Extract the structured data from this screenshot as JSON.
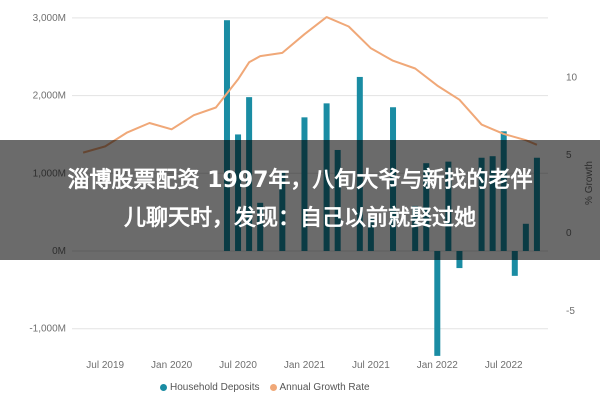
{
  "banner": {
    "line1": "淄博股票配资 1997年，八旬大爷与新找的老伴",
    "line2": "儿聊天时，发现：自己以前就娶过她"
  },
  "colors": {
    "deposits": "#1a8ca3",
    "growth": "#f0a878",
    "grid": "#e3e3e3"
  },
  "chart_data": {
    "type": "bar",
    "title": "",
    "x_tick_labels": [
      "Jul 2019",
      "Jan 2020",
      "Jul 2020",
      "Jan 2021",
      "Jul 2021",
      "Jan 2022",
      "Jul 2022"
    ],
    "y_left_tick_labels": [
      "3,000M",
      "2,000M",
      "1,000M",
      "0M",
      "-1,000M"
    ],
    "y_left_ticks": [
      3000,
      2000,
      1000,
      0,
      -1000
    ],
    "ylim_left": [
      -1300,
      3050
    ],
    "y_right_tick_labels": [
      "10",
      "5",
      "0",
      "-5"
    ],
    "y_right_ticks": [
      10,
      5,
      0,
      -5
    ],
    "ylim_right": [
      -7.7,
      14
    ],
    "y_right_label": "% Growth",
    "legend_position": "bottom",
    "series": [
      {
        "name": "Household Deposits",
        "type": "bar",
        "x": [
          "2020-06",
          "2020-07",
          "2020-08",
          "2020-09",
          "2020-11",
          "2021-01",
          "2021-03",
          "2021-04",
          "2021-06",
          "2021-07",
          "2021-09",
          "2021-11",
          "2021-12",
          "2022-01",
          "2022-02",
          "2022-03",
          "2022-05",
          "2022-06",
          "2022-07",
          "2022-08",
          "2022-09",
          "2022-10"
        ],
        "values": [
          2970,
          1500,
          1980,
          620,
          1010,
          1720,
          1900,
          1300,
          2240,
          420,
          1850,
          580,
          1130,
          -1350,
          1150,
          -220,
          1200,
          1220,
          1540,
          -320,
          350,
          1200
        ]
      },
      {
        "name": "Annual Growth Rate",
        "type": "line",
        "x": [
          "2019-05",
          "2019-07",
          "2019-09",
          "2019-11",
          "2020-01",
          "2020-03",
          "2020-05",
          "2020-07",
          "2020-08",
          "2020-09",
          "2020-11",
          "2021-01",
          "2021-03",
          "2021-05",
          "2021-07",
          "2021-09",
          "2021-11",
          "2022-01",
          "2022-03",
          "2022-05",
          "2022-07",
          "2022-09",
          "2022-10"
        ],
        "values": [
          5.1,
          5.5,
          6.4,
          7.0,
          6.6,
          7.5,
          8.0,
          9.8,
          10.9,
          11.3,
          11.5,
          12.7,
          13.8,
          13.2,
          11.8,
          11.0,
          10.5,
          9.4,
          8.5,
          6.9,
          6.3,
          5.9,
          5.6
        ]
      }
    ]
  }
}
